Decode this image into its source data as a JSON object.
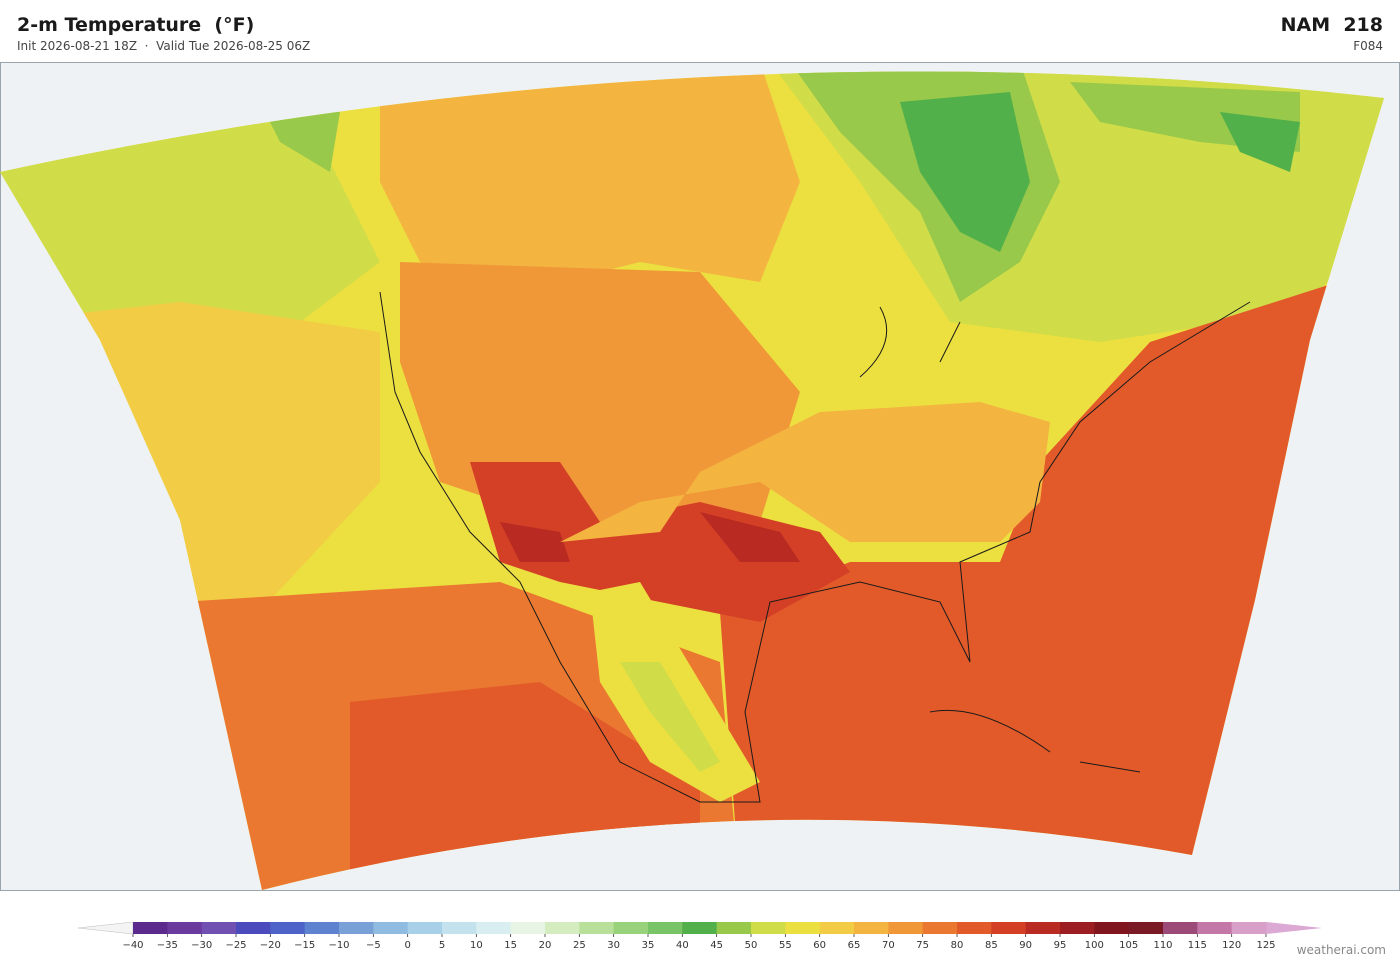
{
  "header": {
    "title": "2-m Temperature  (°F)",
    "subtitle": "Init 2026-08-21 18Z  ·  Valid Tue 2026-08-25 06Z",
    "model": "NAM  218",
    "forecast_hour": "F084"
  },
  "colorbar": {
    "ticks": [
      {
        "value": -40,
        "label": "−40"
      },
      {
        "value": -35,
        "label": "−35"
      },
      {
        "value": -30,
        "label": "−30"
      },
      {
        "value": -25,
        "label": "−25"
      },
      {
        "value": -20,
        "label": "−20"
      },
      {
        "value": -15,
        "label": "−15"
      },
      {
        "value": -10,
        "label": "−10"
      },
      {
        "value": -5,
        "label": "−5"
      },
      0,
      5,
      10,
      15,
      20,
      25,
      30,
      35,
      40,
      45,
      50,
      55,
      60,
      65,
      70,
      75,
      80,
      85,
      90,
      95,
      100,
      105,
      110,
      115,
      120,
      125
    ],
    "colors": [
      "#5b2a8c",
      "#6a3a9e",
      "#7050b0",
      "#4b4bbd",
      "#4e63c8",
      "#5f82d0",
      "#7aa0d8",
      "#8fbce0",
      "#a8d0e8",
      "#c3e2ee",
      "#d8eef0",
      "#e8f5e4",
      "#d4ecc0",
      "#b8e09a",
      "#98d27a",
      "#78c466",
      "#52b04a",
      "#98c94a",
      "#d0dc48",
      "#ece040",
      "#f2cc44",
      "#f3b440",
      "#f09838",
      "#ea7830",
      "#e25a2a",
      "#d44026",
      "#b82a22",
      "#9c1e22",
      "#82161e",
      "#7a1a24",
      "#9c4a78",
      "#c478a8",
      "#d8a0c8"
    ],
    "under_color": "#f4f4f4",
    "over_color": "#dca8d4"
  },
  "watermark": "weatherai.com"
}
